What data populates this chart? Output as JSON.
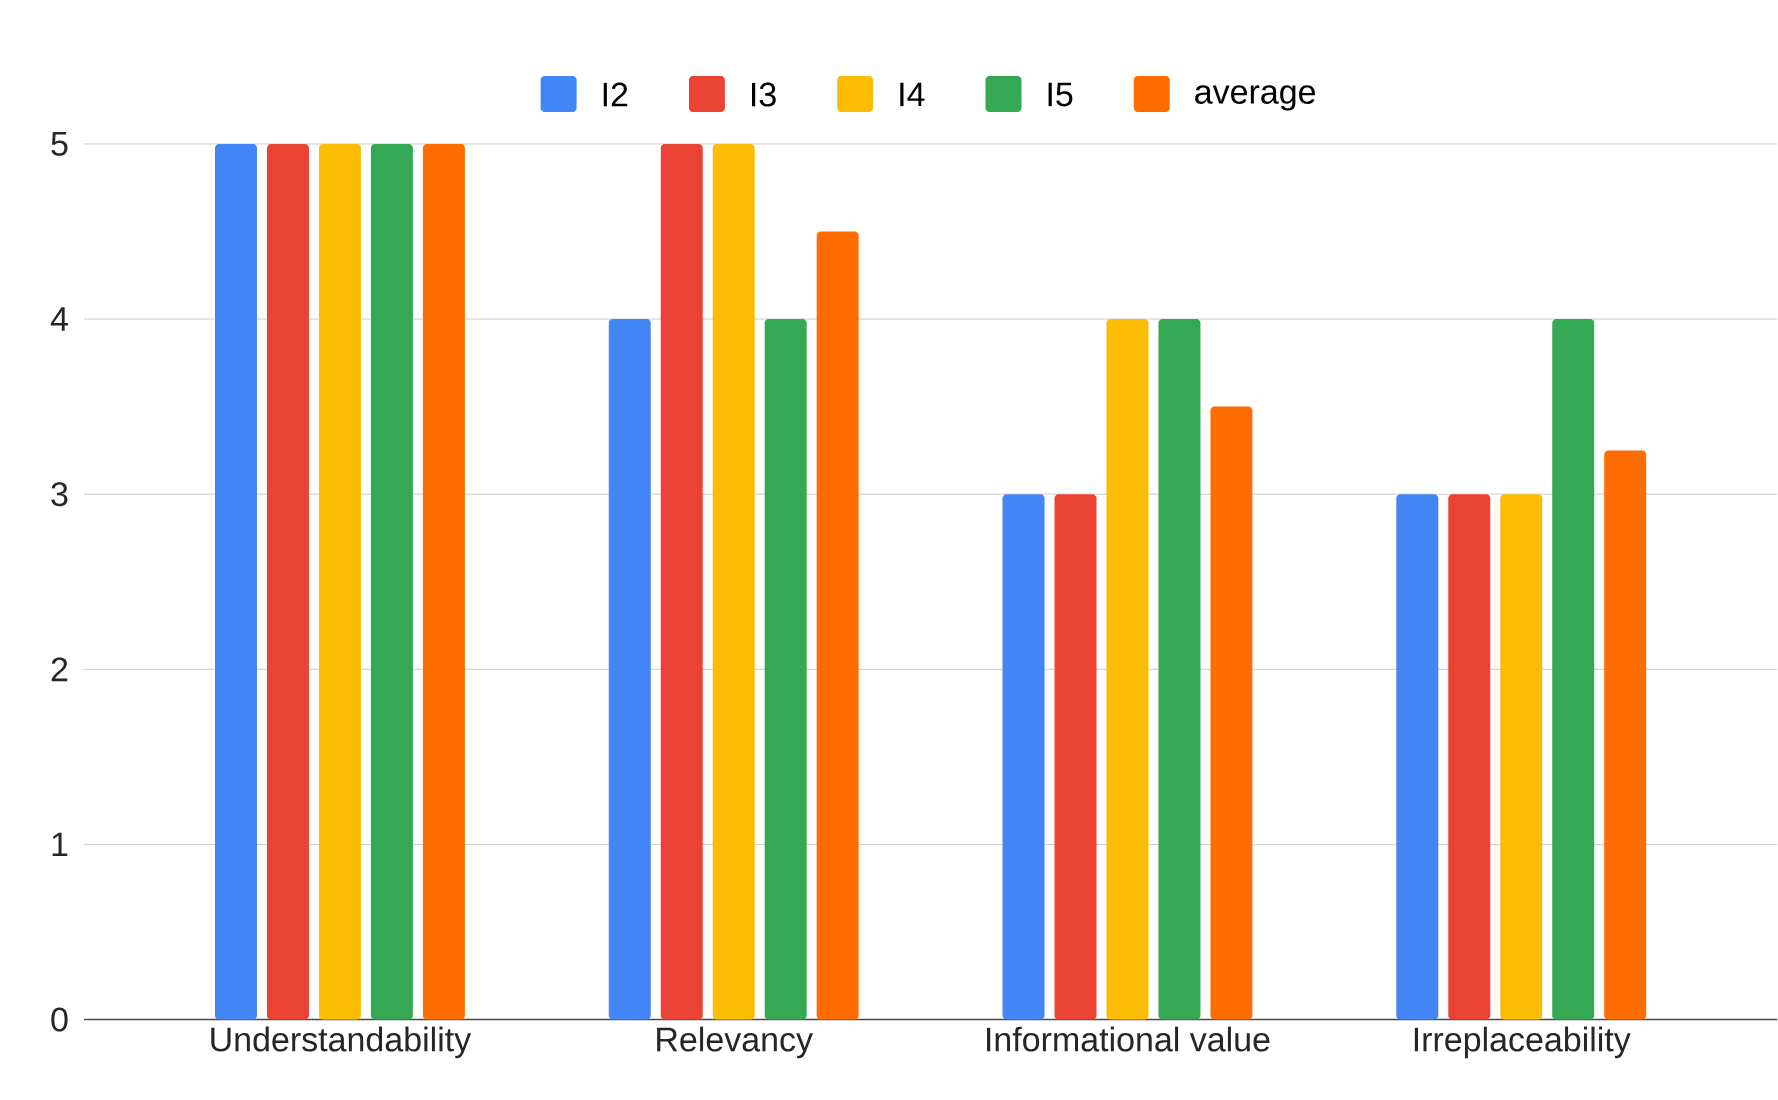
{
  "chart_data": {
    "type": "bar",
    "categories": [
      "Understandability",
      "Relevancy",
      "Informational value",
      "Irreplaceability"
    ],
    "series": [
      {
        "name": "I2",
        "color": "#4285f4",
        "values": [
          5,
          4,
          3,
          3
        ]
      },
      {
        "name": "I3",
        "color": "#ea4335",
        "values": [
          5,
          5,
          3,
          3
        ]
      },
      {
        "name": "I4",
        "color": "#fbbc04",
        "values": [
          5,
          5,
          4,
          3
        ]
      },
      {
        "name": "I5",
        "color": "#34a853",
        "values": [
          5,
          4,
          4,
          4
        ]
      },
      {
        "name": "average",
        "color": "#ff6d01",
        "values": [
          5,
          4.5,
          3.5,
          3.25
        ]
      }
    ],
    "ylim": [
      0,
      5
    ],
    "yticks": [
      0,
      1,
      2,
      3,
      4,
      5
    ],
    "grid": "y",
    "legend": "top"
  }
}
